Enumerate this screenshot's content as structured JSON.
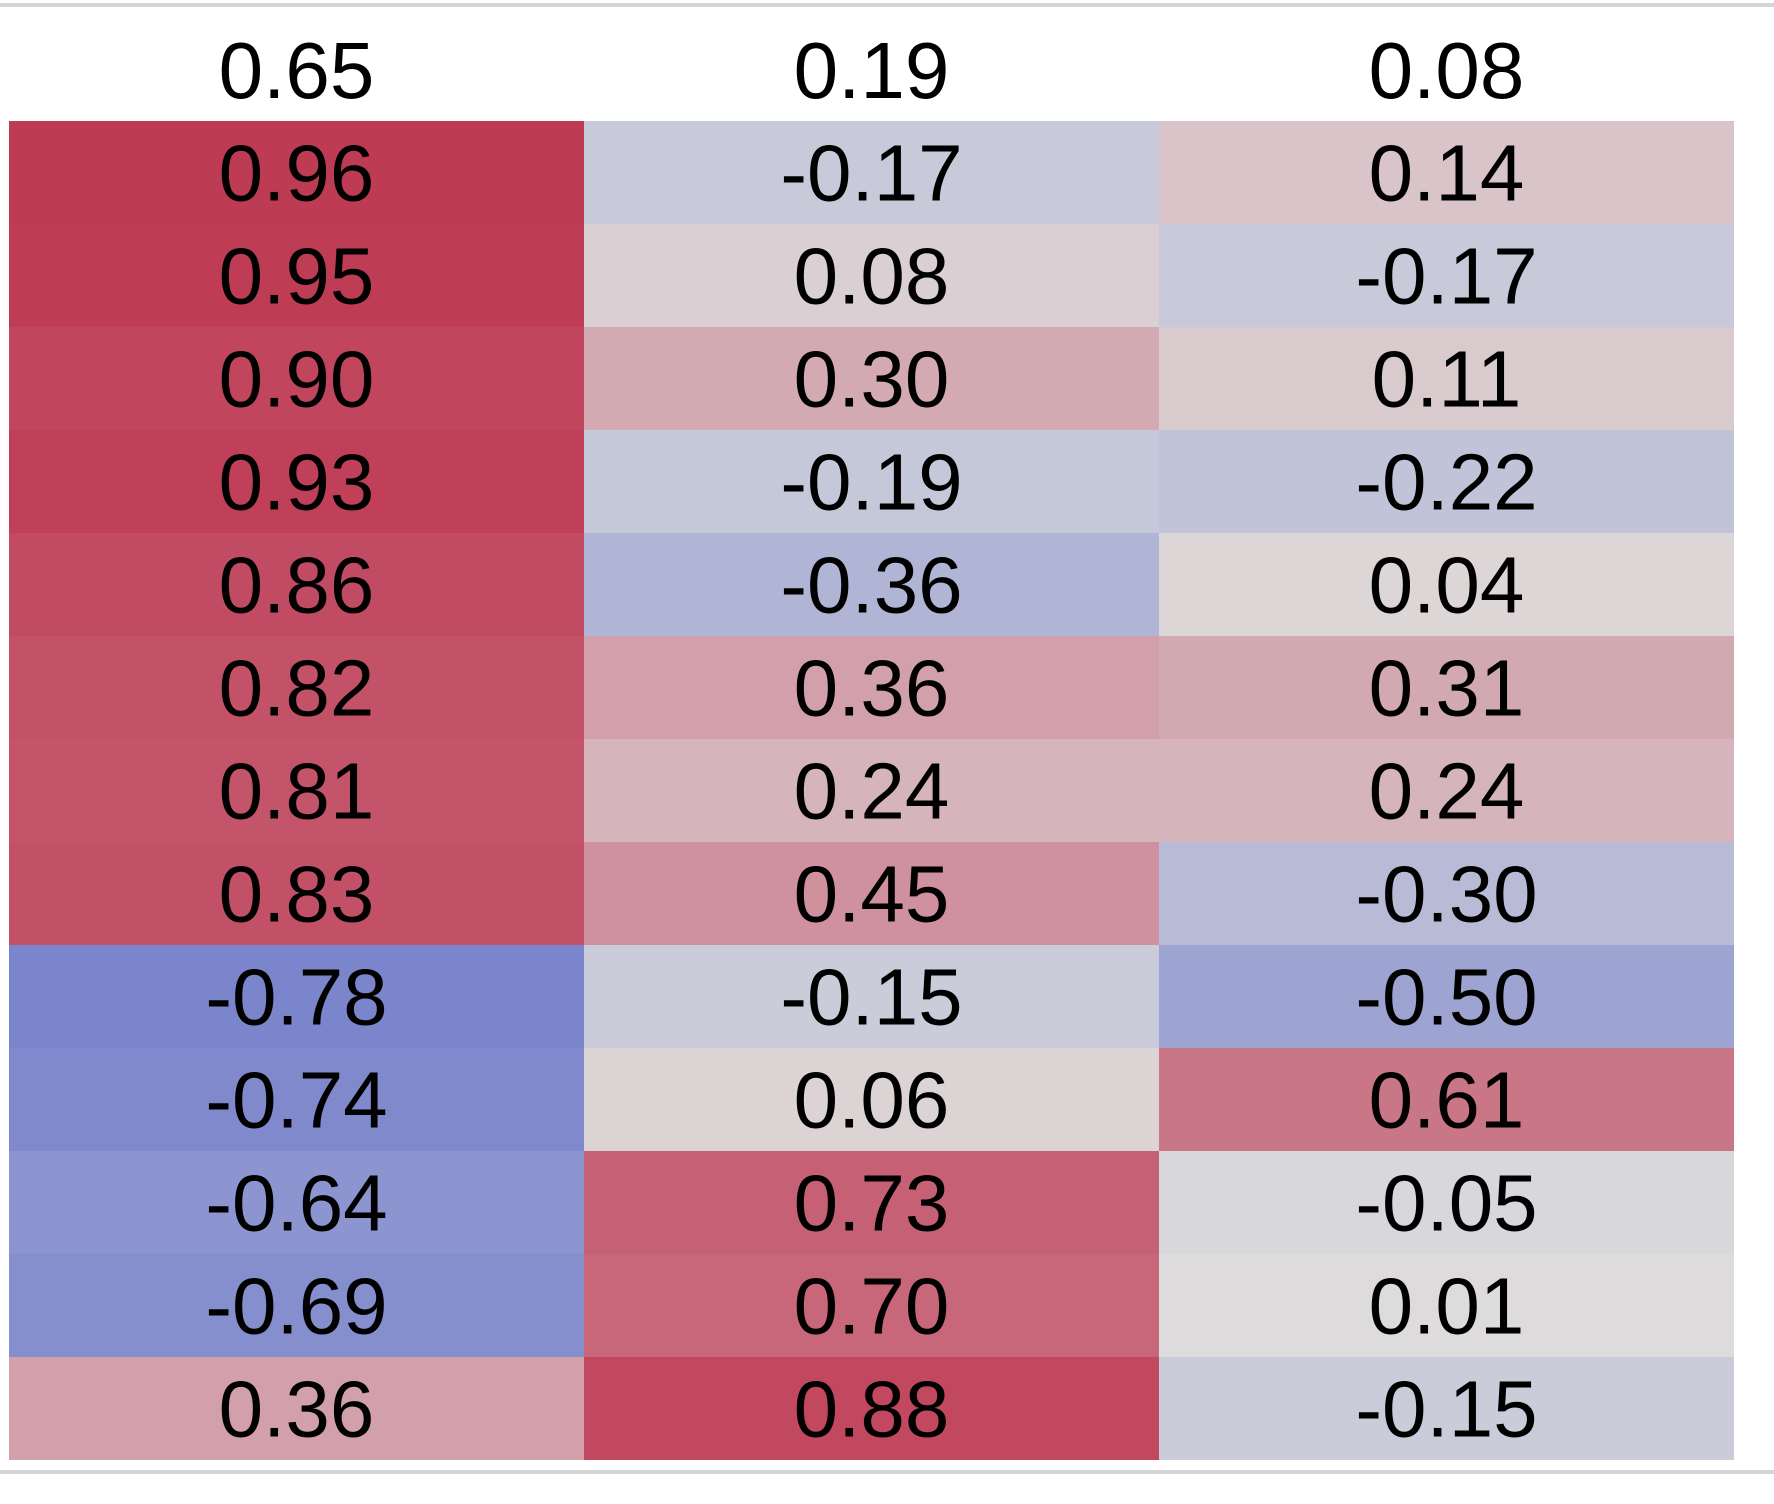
{
  "chart_data": {
    "type": "heatmap",
    "title": "",
    "xlabel": "",
    "ylabel": "",
    "colormap": {
      "name": "coolwarm",
      "negative": "#3b4cc0",
      "neutral": "#dddddd",
      "positive": "#b40426",
      "range": [
        -1,
        1
      ]
    },
    "header_row": [
      "0.65",
      "0.19",
      "0.08"
    ],
    "rows": [
      [
        0.96,
        -0.17,
        0.14
      ],
      [
        0.95,
        0.08,
        -0.17
      ],
      [
        0.9,
        0.3,
        0.11
      ],
      [
        0.93,
        -0.19,
        -0.22
      ],
      [
        0.86,
        -0.36,
        0.04
      ],
      [
        0.82,
        0.36,
        0.31
      ],
      [
        0.81,
        0.24,
        0.24
      ],
      [
        0.83,
        0.45,
        -0.3
      ],
      [
        -0.78,
        -0.15,
        -0.5
      ],
      [
        -0.74,
        0.06,
        0.61
      ],
      [
        -0.64,
        0.73,
        -0.05
      ],
      [
        -0.69,
        0.7,
        0.01
      ],
      [
        0.36,
        0.88,
        -0.15
      ]
    ],
    "labels": [
      [
        "0.96",
        "-0.17",
        "0.14"
      ],
      [
        "0.95",
        "0.08",
        "-0.17"
      ],
      [
        "0.90",
        "0.30",
        "0.11"
      ],
      [
        "0.93",
        "-0.19",
        "-0.22"
      ],
      [
        "0.86",
        "-0.36",
        "0.04"
      ],
      [
        "0.82",
        "0.36",
        "0.31"
      ],
      [
        "0.81",
        "0.24",
        "0.24"
      ],
      [
        "0.83",
        "0.45",
        "-0.30"
      ],
      [
        "-0.78",
        "-0.15",
        "-0.50"
      ],
      [
        "-0.74",
        "0.06",
        "0.61"
      ],
      [
        "-0.64",
        "0.73",
        "-0.05"
      ],
      [
        "-0.69",
        "0.70",
        "0.01"
      ],
      [
        "0.36",
        "0.88",
        "-0.15"
      ]
    ]
  }
}
